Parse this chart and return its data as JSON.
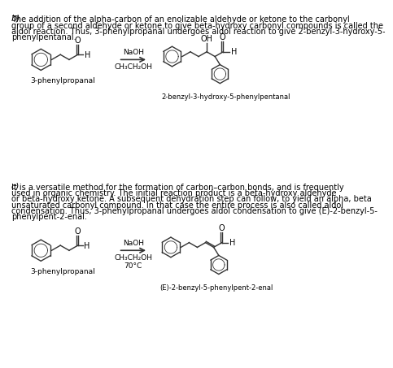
{
  "bg_color": "#ffffff",
  "text_color": "#000000",
  "line_color": "#333333",
  "section_b_label": "b)",
  "section_b_text1": "The addition of the alpha-carbon of an enolizable aldehyde or ketone to the carbonyl",
  "section_b_text2": "group of a second aldehyde or ketone to give beta-hydroxy carbonyl compounds is called the",
  "section_b_text3": "aldol reaction. Thus, 3-phenylpropanal undergoes aldol reaction to give 2-benzyl-3-hydroxy-5-",
  "section_b_text4": "phenylpentanal.",
  "reagent_b1": "NaOH",
  "reagent_b2": "CH₃CH₂OH",
  "label_b_reactant": "3-phenylpropanal",
  "label_b_product": "2-benzyl-3-hydroxy-5-phenylpentanal",
  "section_c_label": "c)",
  "section_c_text1": "It is a versatile method for the formation of carbon–carbon bonds, and is frequently",
  "section_c_text2": "used in organic chemistry. The initial reaction product is a beta-hydroxy aldehyde",
  "section_c_text3": "or beta-hydroxy ketone. A subsequent dehydration step can follow, to yield an alpha, beta",
  "section_c_text4": "unsaturated carbonyl compound. In that case the entire process is also called aldol",
  "section_c_text5": "condensation. Thus, 3-phenylpropanal undergoes aldol condensation to give (E)-2-benzyl-5-",
  "section_c_text6": "phenylpent-2-enal.",
  "reagent_c1": "NaOH",
  "reagent_c2": "CH₃CH₂OH",
  "reagent_c3": "70°C",
  "label_c_reactant": "3-phenylpropanal",
  "label_c_product": "(E)-2-benzyl-5-phenylpent-2-enal",
  "font_size_text": 7.0,
  "font_size_label": 6.5,
  "font_size_reagent": 6.5,
  "font_size_section": 8.0,
  "line_width": 1.0
}
